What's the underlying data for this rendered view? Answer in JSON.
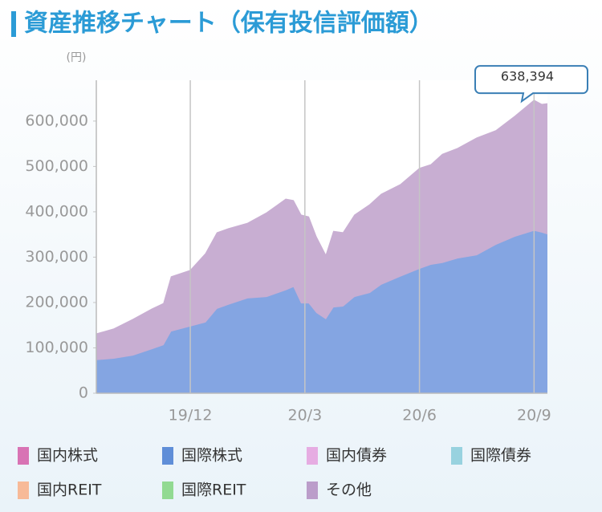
{
  "chart_data": {
    "type": "stacked_area",
    "title": "資産推移チャート（保有投信評価額）",
    "y_unit": "(円)",
    "x": [
      -2.46,
      -2,
      -1.5,
      -1,
      -0.7,
      -0.5,
      0,
      0.4,
      0.7,
      1,
      1.5,
      2,
      2.5,
      2.7,
      2.9,
      3.1,
      3.3,
      3.55,
      3.75,
      4,
      4.3,
      4.7,
      5,
      5.5,
      6,
      6.3,
      6.6,
      7,
      7.5,
      8,
      8.5,
      9,
      9.2,
      9.35
    ],
    "series": [
      {
        "name": "国際株式",
        "color": "#84a5e2",
        "values": [
          73000,
          76000,
          83000,
          97000,
          106000,
          136000,
          147000,
          156000,
          186000,
          195000,
          209000,
          212000,
          227000,
          234000,
          198000,
          198000,
          177000,
          163000,
          189000,
          191000,
          212000,
          221000,
          239000,
          257000,
          274000,
          283000,
          287000,
          297000,
          304000,
          327000,
          345000,
          358000,
          354000,
          350000
        ]
      },
      {
        "name": "その他",
        "color": "#c8aed2",
        "values": [
          58000,
          66000,
          80000,
          89000,
          92000,
          121000,
          124000,
          152000,
          168000,
          168000,
          166000,
          186000,
          201000,
          191000,
          195000,
          191000,
          168000,
          141000,
          168000,
          163000,
          181000,
          195000,
          200000,
          203000,
          222000,
          221000,
          240000,
          243000,
          259000,
          252000,
          266000,
          288000,
          283000,
          288394
        ]
      }
    ],
    "legend": [
      {
        "name": "国内株式",
        "color": "#d873b4"
      },
      {
        "name": "国際株式",
        "color": "#5f8ed8"
      },
      {
        "name": "国内債券",
        "color": "#e6ace2"
      },
      {
        "name": "国際債券",
        "color": "#98d2df"
      },
      {
        "name": "国内REIT",
        "color": "#f7ba98"
      },
      {
        "name": "国際REIT",
        "color": "#92da92"
      },
      {
        "name": "その他",
        "color": "#bb9dca"
      }
    ],
    "callout": {
      "value": 638394,
      "label": "638,394"
    },
    "xlim": [
      -2.46,
      9.35
    ],
    "xticks": [
      {
        "value": 0,
        "label": "19/12"
      },
      {
        "value": 3,
        "label": "20/3"
      },
      {
        "value": 6,
        "label": "20/6"
      },
      {
        "value": 9,
        "label": "20/9"
      }
    ],
    "ylim": [
      0,
      690000
    ],
    "yticks": [
      0,
      {
        "value": 100000,
        "label": "100,000"
      },
      {
        "value": 200000,
        "label": "200,000"
      },
      {
        "value": 300000,
        "label": "300,000"
      },
      {
        "value": 400000,
        "label": "400,000"
      },
      {
        "value": 500000,
        "label": "500,000"
      },
      {
        "value": 600000,
        "label": "600,000"
      }
    ],
    "grid": "x"
  }
}
